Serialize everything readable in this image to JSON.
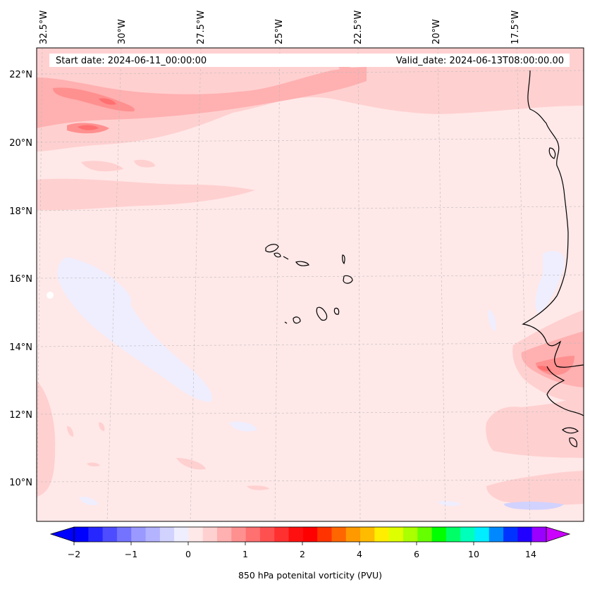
{
  "map": {
    "start_date": "Start date: 2024-06-11_00:00:00",
    "valid_date": "Valid_date: 2024-06-13T08:00:00.00",
    "lat_labels": [
      "22°N",
      "20°N",
      "18°N",
      "16°N",
      "14°N",
      "12°N",
      "10°N"
    ],
    "lon_labels": [
      "32.5°W",
      "30°W",
      "27.5°W",
      "25°W",
      "22.5°W",
      "20°W",
      "17.5°W"
    ],
    "extent": {
      "lon_min": -32.5,
      "lon_max": -15.2,
      "lat_min": 8.9,
      "lat_max": 22.7
    },
    "gridlines": true,
    "coastlines": true,
    "background_color": "#ffe8e8"
  },
  "colorbar": {
    "label": "850 hPa potenital vorticity (PVU)",
    "tick_labels": [
      "−2",
      "−1",
      "0",
      "1",
      "2",
      "4",
      "6",
      "10",
      "14"
    ],
    "colors": [
      "#0000ff",
      "#2626ff",
      "#4d4dff",
      "#7373ff",
      "#9999ff",
      "#b3b3ff",
      "#d2d2ff",
      "#eeeeff",
      "#ffe8e8",
      "#ffd0d0",
      "#ffb0b0",
      "#ff9090",
      "#ff7070",
      "#ff5050",
      "#ff3030",
      "#ff1010",
      "#ff0000",
      "#ff3300",
      "#ff6600",
      "#ff9900",
      "#ffbb00",
      "#ffee00",
      "#ddff00",
      "#aaff00",
      "#66ff00",
      "#00ff00",
      "#00ff66",
      "#00ffbb",
      "#00eeff",
      "#0088ff",
      "#0033ff",
      "#2200ff",
      "#9900ff"
    ],
    "extend_low_color": "#0000ff",
    "extend_high_color": "#cc00ff"
  }
}
